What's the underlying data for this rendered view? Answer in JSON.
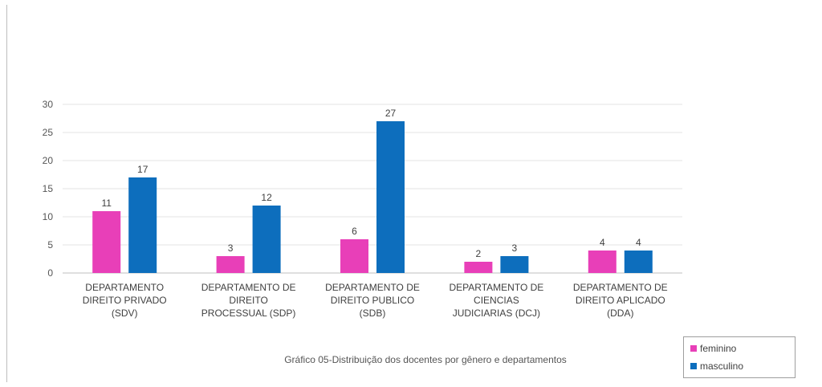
{
  "chart_data": {
    "type": "bar",
    "categories": [
      [
        "DEPARTAMENTO",
        "DIREITO PRIVADO",
        "(SDV)"
      ],
      [
        "DEPARTAMENTO DE",
        "DIREITO",
        "PROCESSUAL (SDP)"
      ],
      [
        "DEPARTAMENTO DE",
        "DIREITO PUBLICO",
        "(SDB)"
      ],
      [
        "DEPARTAMENTO DE",
        "CIENCIAS",
        "JUDICIARIAS (DCJ)"
      ],
      [
        "DEPARTAMENTO DE",
        "DIREITO APLICADO",
        "(DDA)"
      ]
    ],
    "series": [
      {
        "name": "feminino",
        "color": "#e83fb8",
        "values": [
          11,
          3,
          6,
          2,
          4
        ]
      },
      {
        "name": "masculino",
        "color": "#0d6ebd",
        "values": [
          17,
          12,
          27,
          3,
          4
        ]
      }
    ],
    "ylim": [
      0,
      30
    ],
    "yticks": [
      0,
      5,
      10,
      15,
      20,
      25,
      30
    ],
    "grid": true,
    "legend_position": "bottom-right",
    "data_labels": true
  },
  "caption": "Gráfico 05-Distribuição dos docentes por gênero e departamentos",
  "legend": {
    "items": [
      {
        "label": "feminino",
        "color": "#e83fb8"
      },
      {
        "label": "masculino",
        "color": "#0d6ebd"
      }
    ]
  }
}
